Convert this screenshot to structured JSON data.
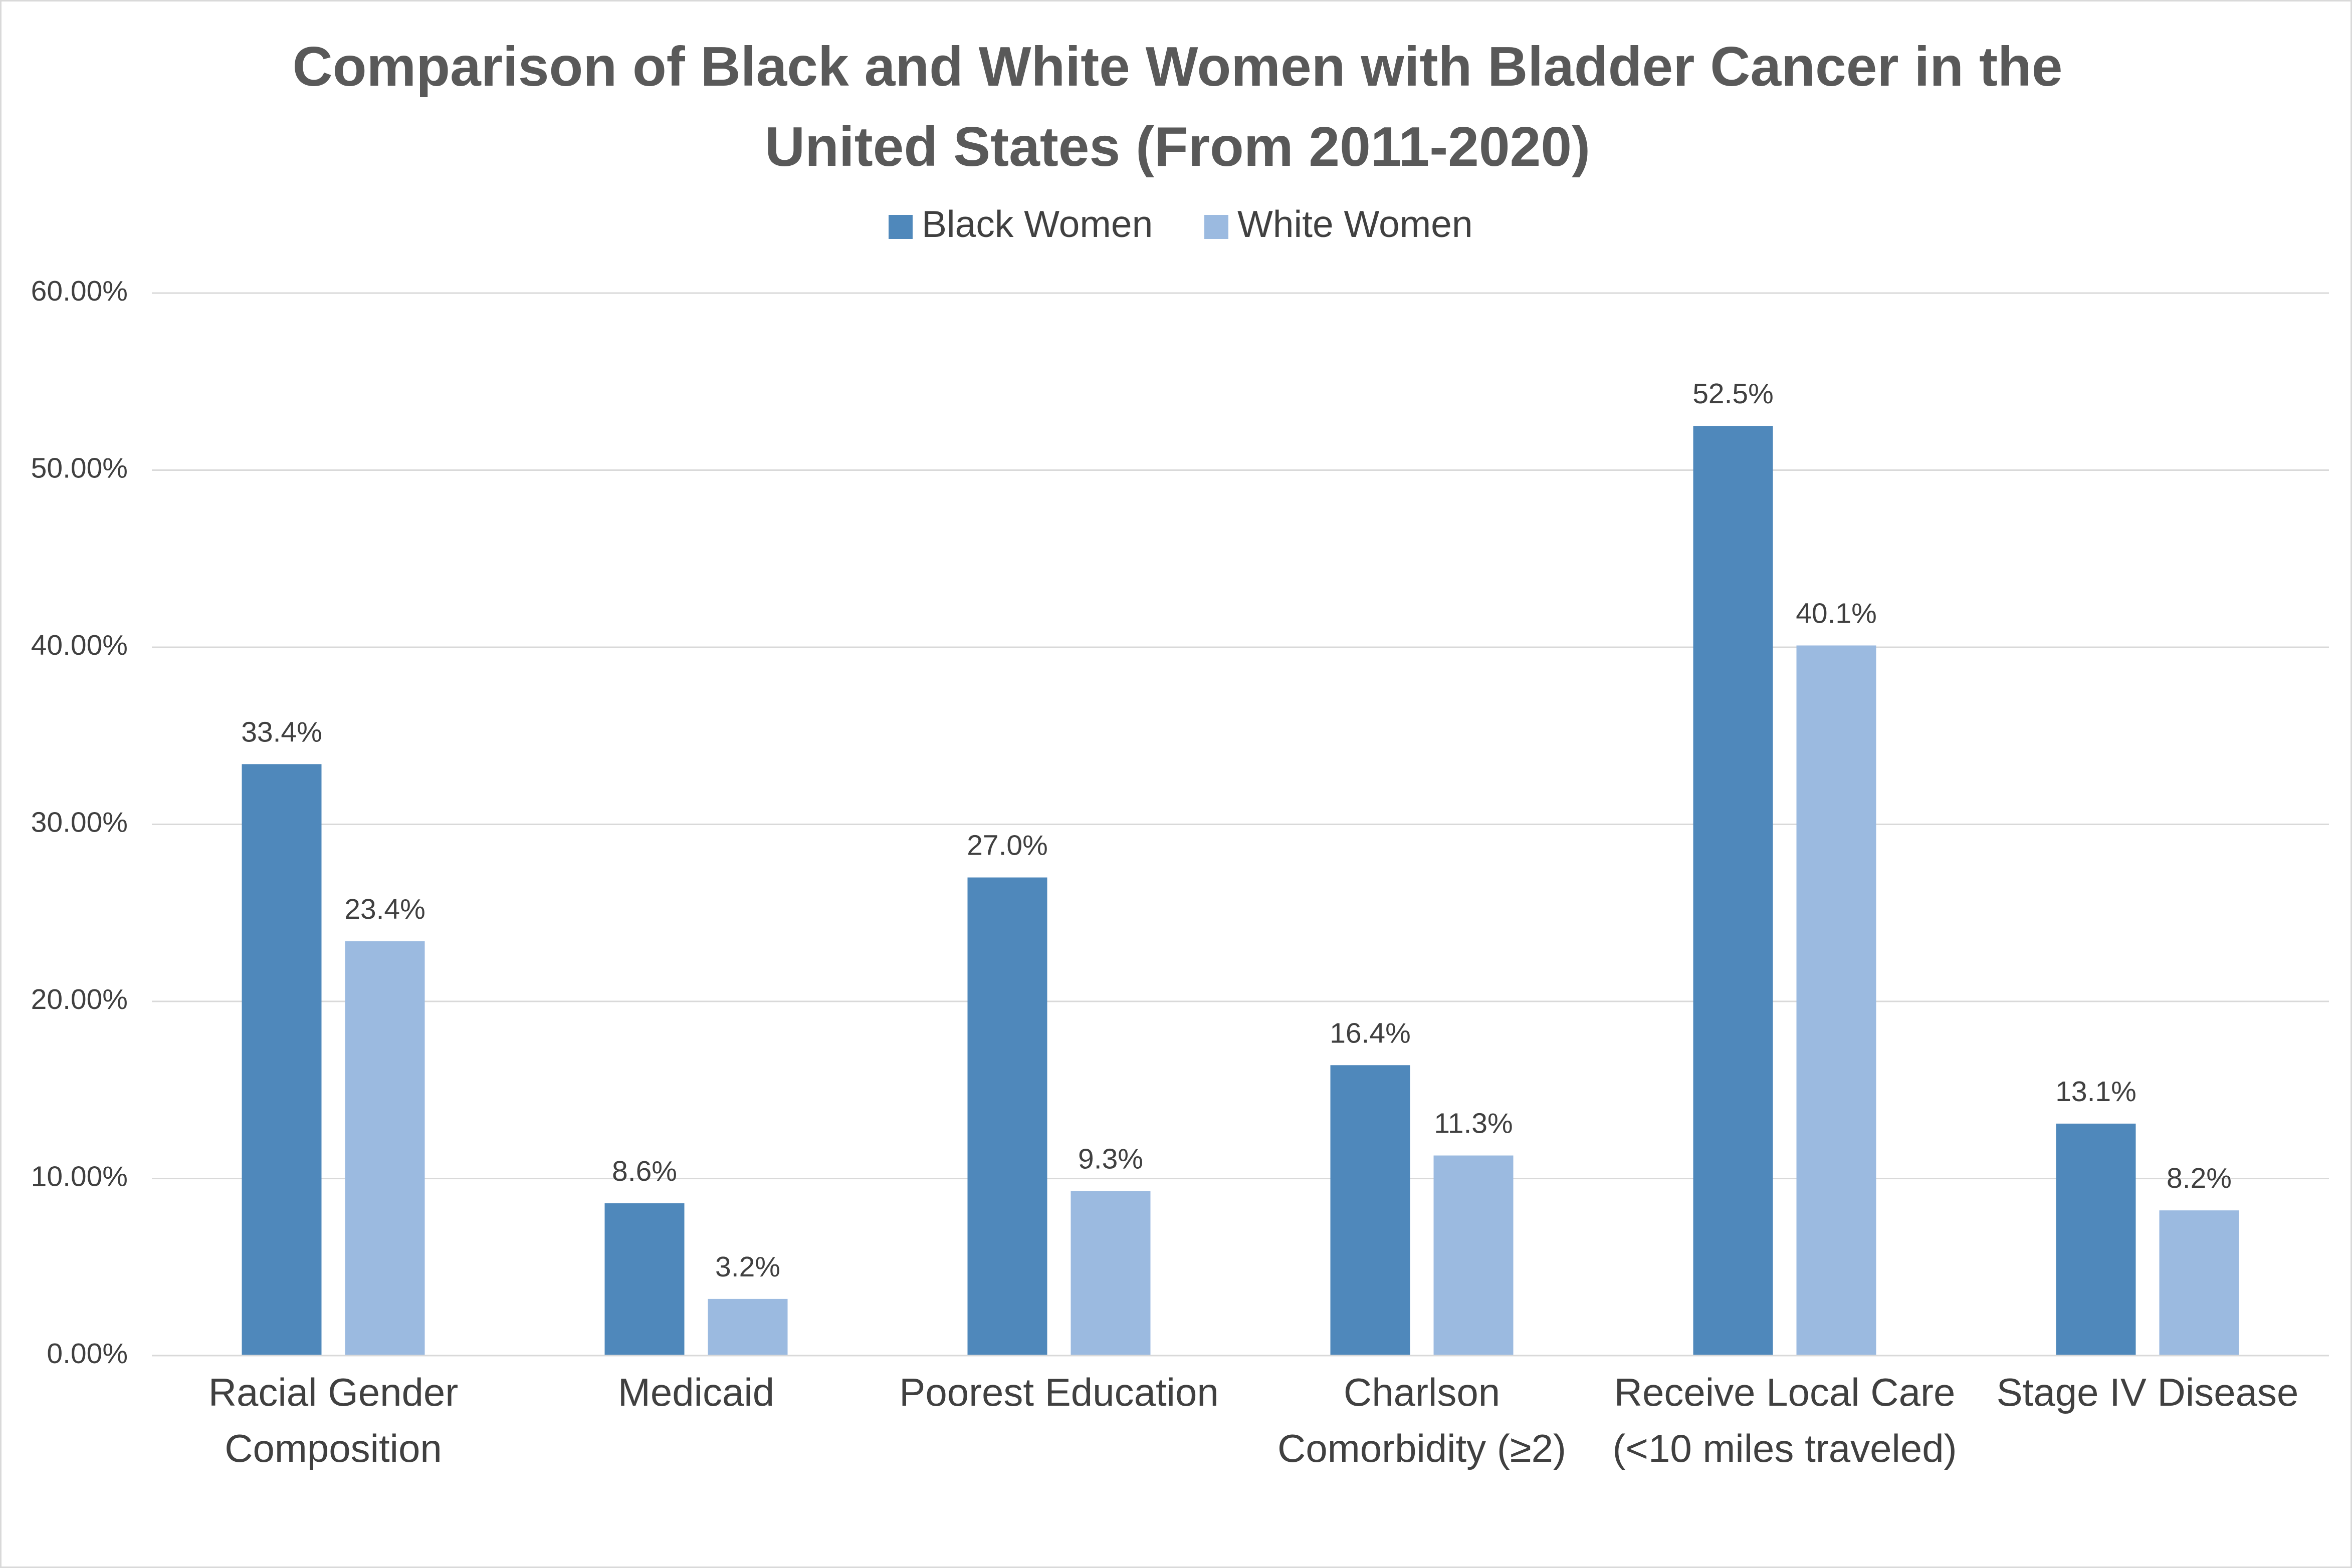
{
  "chart_data": {
    "type": "bar",
    "title": "Comparison of Black and White Women with Bladder Cancer in the United States (From 2011-2020)",
    "categories": [
      "Racial Gender Composition",
      "Medicaid",
      "Poorest Education",
      "Charlson Comorbidity (≥2)",
      "Receive Local Care (<10 miles traveled)",
      "Stage IV Disease"
    ],
    "series": [
      {
        "name": "Black Women",
        "color": "#4f88bb",
        "values": [
          33.4,
          8.6,
          27.0,
          16.4,
          52.5,
          13.1
        ],
        "value_labels": [
          "33.4%",
          "8.6%",
          "27.0%",
          "16.4%",
          "52.5%",
          "13.1%"
        ]
      },
      {
        "name": "White Women",
        "color": "#9bbae0",
        "values": [
          23.4,
          3.2,
          9.3,
          11.3,
          40.1,
          8.2
        ],
        "value_labels": [
          "23.4%",
          "3.2%",
          "9.3%",
          "11.3%",
          "40.1%",
          "8.2%"
        ]
      }
    ],
    "ylim": [
      0,
      60
    ],
    "yticks": [
      {
        "value": 0,
        "label": "0.00%"
      },
      {
        "value": 10,
        "label": "10.00%"
      },
      {
        "value": 20,
        "label": "20.00%"
      },
      {
        "value": 30,
        "label": "30.00%"
      },
      {
        "value": 40,
        "label": "40.00%"
      },
      {
        "value": 50,
        "label": "50.00%"
      },
      {
        "value": 60,
        "label": "60.00%"
      }
    ],
    "grid": true,
    "legend": "top"
  }
}
